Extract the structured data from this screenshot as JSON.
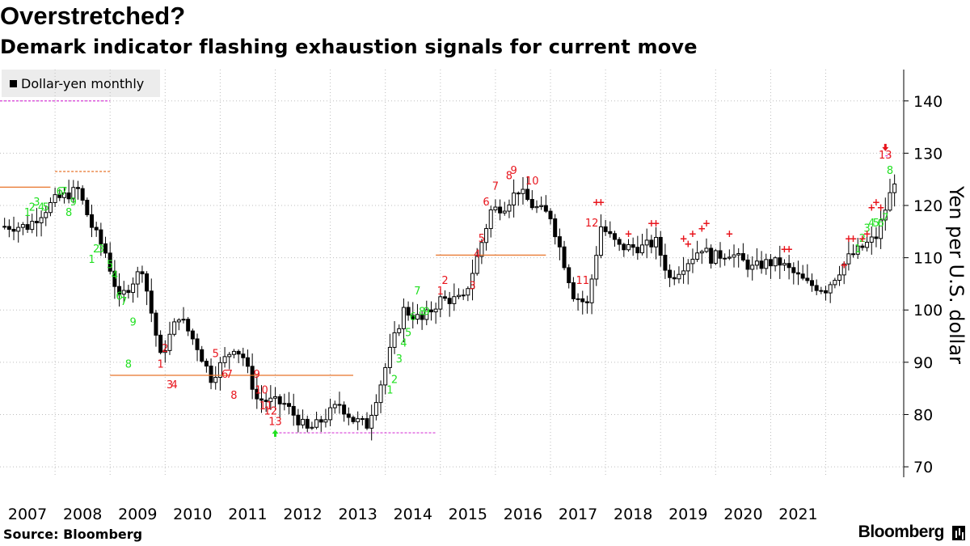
{
  "header": {
    "title": "Overstretched?",
    "subtitle": "Demark indicator flashing exhaustion signals for current move"
  },
  "legend": {
    "label": "Dollar-yen monthly"
  },
  "footer": {
    "source": "Source: Bloomberg",
    "brand": "Bloomberg"
  },
  "colors": {
    "candle": "#000000",
    "setup_count": "#22e022",
    "countdown": "#e8141c",
    "tdst_line": "#e8742a",
    "risk_line": "#d83cd8",
    "grid": "#bdbdbd"
  },
  "chart_data": {
    "type": "candlestick",
    "title": "Overstretched?",
    "subtitle": "Demark indicator flashing exhaustion signals for current move",
    "ylabel": "Yen per U.S. dollar",
    "ylim": [
      68,
      146
    ],
    "yticks": [
      70,
      80,
      90,
      100,
      110,
      120,
      130,
      140
    ],
    "xlim": [
      "2006-01",
      "2022-06"
    ],
    "xticks": [
      "2007",
      "2008",
      "2009",
      "2010",
      "2011",
      "2012",
      "2013",
      "2014",
      "2015",
      "2016",
      "2017",
      "2018",
      "2019",
      "2020",
      "2021"
    ],
    "grid": true,
    "legend_position": "top-left",
    "series": [
      {
        "name": "Dollar-yen monthly",
        "x": [
          "2006-01",
          "2006-07",
          "2007-01",
          "2007-06",
          "2007-09",
          "2007-12",
          "2008-03",
          "2008-08",
          "2008-12",
          "2009-04",
          "2009-08",
          "2009-11",
          "2010-04",
          "2010-06",
          "2010-09",
          "2011-03",
          "2011-08",
          "2011-10",
          "2012-03",
          "2012-06",
          "2012-09",
          "2012-12",
          "2013-02",
          "2013-05",
          "2013-09",
          "2014-01",
          "2014-06",
          "2014-09",
          "2014-12",
          "2015-03",
          "2015-06",
          "2015-09",
          "2016-01",
          "2016-06",
          "2016-09",
          "2016-12",
          "2017-04",
          "2017-09",
          "2017-12",
          "2018-03",
          "2018-10",
          "2018-12",
          "2019-04",
          "2019-09",
          "2019-12",
          "2020-03",
          "2020-06",
          "2020-09",
          "2021-01",
          "2021-06",
          "2021-12",
          "2022-03",
          "2022-04"
        ],
        "close": [
          116,
          116,
          121,
          123,
          116,
          111,
          102,
          108,
          91,
          99,
          93,
          87,
          93,
          91,
          83,
          82,
          77,
          78,
          82,
          79,
          78,
          86,
          92,
          100,
          98,
          102,
          102,
          110,
          119,
          120,
          123,
          120,
          118,
          103,
          101,
          116,
          112,
          112,
          113,
          106,
          112,
          110,
          111,
          108,
          109,
          109,
          107,
          105,
          104,
          110,
          114,
          122,
          125
        ]
      }
    ],
    "annotations": {
      "labels": [
        {
          "x": "2006-07",
          "y": 118,
          "text": "1",
          "color": "green"
        },
        {
          "x": "2006-08",
          "y": 119,
          "text": "2",
          "color": "green"
        },
        {
          "x": "2006-09",
          "y": 120,
          "text": "3",
          "color": "green"
        },
        {
          "x": "2006-10",
          "y": 119,
          "text": "4",
          "color": "green"
        },
        {
          "x": "2006-11",
          "y": 119,
          "text": "5",
          "color": "green"
        },
        {
          "x": "2007-02",
          "y": 122,
          "text": "6",
          "color": "green"
        },
        {
          "x": "2007-03",
          "y": 122,
          "text": "7",
          "color": "green"
        },
        {
          "x": "2007-04",
          "y": 118,
          "text": "8",
          "color": "green"
        },
        {
          "x": "2007-05",
          "y": 120,
          "text": "9",
          "color": "green"
        },
        {
          "x": "2007-09",
          "y": 109,
          "text": "1",
          "color": "green"
        },
        {
          "x": "2007-10",
          "y": 111,
          "text": "2",
          "color": "green"
        },
        {
          "x": "2007-11",
          "y": 111,
          "text": "3",
          "color": "green"
        },
        {
          "x": "2008-02",
          "y": 106,
          "text": "4",
          "color": "green"
        },
        {
          "x": "2008-01",
          "y": 108,
          "text": "5",
          "color": "green"
        },
        {
          "x": "2008-03",
          "y": 102,
          "text": "6",
          "color": "green"
        },
        {
          "x": "2008-04",
          "y": 101,
          "text": "7",
          "color": "green"
        },
        {
          "x": "2008-05",
          "y": 89,
          "text": "8",
          "color": "green"
        },
        {
          "x": "2008-06",
          "y": 97,
          "text": "9",
          "color": "green"
        },
        {
          "x": "2008-12",
          "y": 89,
          "text": "1",
          "color": "red"
        },
        {
          "x": "2009-01",
          "y": 92,
          "text": "2",
          "color": "red"
        },
        {
          "x": "2009-02",
          "y": 85,
          "text": "3",
          "color": "red"
        },
        {
          "x": "2009-03",
          "y": 85,
          "text": "4",
          "color": "red"
        },
        {
          "x": "2009-12",
          "y": 91,
          "text": "5",
          "color": "red"
        },
        {
          "x": "2010-02",
          "y": 87,
          "text": "6",
          "color": "red"
        },
        {
          "x": "2010-03",
          "y": 87,
          "text": "7",
          "color": "red"
        },
        {
          "x": "2010-04",
          "y": 83,
          "text": "8",
          "color": "red"
        },
        {
          "x": "2010-09",
          "y": 87,
          "text": "9",
          "color": "red"
        },
        {
          "x": "2010-10",
          "y": 84,
          "text": "10",
          "color": "red"
        },
        {
          "x": "2010-11",
          "y": 81,
          "text": "11",
          "color": "red"
        },
        {
          "x": "2010-12",
          "y": 80,
          "text": "12",
          "color": "red"
        },
        {
          "x": "2011-01",
          "y": 78,
          "text": "13",
          "color": "red"
        },
        {
          "x": "2013-02",
          "y": 84,
          "text": "1",
          "color": "green"
        },
        {
          "x": "2013-03",
          "y": 86,
          "text": "2",
          "color": "green"
        },
        {
          "x": "2013-04",
          "y": 90,
          "text": "3",
          "color": "green"
        },
        {
          "x": "2013-05",
          "y": 93,
          "text": "4",
          "color": "green"
        },
        {
          "x": "2013-06",
          "y": 95,
          "text": "5",
          "color": "green"
        },
        {
          "x": "2013-07",
          "y": 98,
          "text": "6",
          "color": "green"
        },
        {
          "x": "2013-08",
          "y": 103,
          "text": "7",
          "color": "green"
        },
        {
          "x": "2013-09",
          "y": 99,
          "text": "8",
          "color": "green"
        },
        {
          "x": "2013-10",
          "y": 99,
          "text": "9",
          "color": "green"
        },
        {
          "x": "2014-01",
          "y": 103,
          "text": "1",
          "color": "red"
        },
        {
          "x": "2014-02",
          "y": 105,
          "text": "2",
          "color": "red"
        },
        {
          "x": "2014-08",
          "y": 104,
          "text": "3",
          "color": "red"
        },
        {
          "x": "2014-09",
          "y": 110,
          "text": "4",
          "color": "red"
        },
        {
          "x": "2014-10",
          "y": 113,
          "text": "5",
          "color": "red"
        },
        {
          "x": "2014-11",
          "y": 120,
          "text": "6",
          "color": "red"
        },
        {
          "x": "2015-01",
          "y": 123,
          "text": "7",
          "color": "red"
        },
        {
          "x": "2015-04",
          "y": 125,
          "text": "8",
          "color": "red"
        },
        {
          "x": "2015-05",
          "y": 126,
          "text": "9",
          "color": "red"
        },
        {
          "x": "2015-09",
          "y": 124,
          "text": "10",
          "color": "red"
        },
        {
          "x": "2016-08",
          "y": 105,
          "text": "11",
          "color": "red"
        },
        {
          "x": "2016-10",
          "y": 116,
          "text": "12",
          "color": "red"
        },
        {
          "x": "2022-02",
          "y": 129,
          "text": "13",
          "color": "red"
        },
        {
          "x": "2021-08",
          "y": 111,
          "text": "1",
          "color": "green"
        },
        {
          "x": "2021-09",
          "y": 113,
          "text": "2",
          "color": "green"
        },
        {
          "x": "2021-10",
          "y": 115,
          "text": "3",
          "color": "green"
        },
        {
          "x": "2021-11",
          "y": 116,
          "text": "4",
          "color": "green"
        },
        {
          "x": "2021-12",
          "y": 116,
          "text": "5",
          "color": "green"
        },
        {
          "x": "2022-01",
          "y": 116,
          "text": "6",
          "color": "green"
        },
        {
          "x": "2022-02",
          "y": 117,
          "text": "7",
          "color": "green"
        },
        {
          "x": "2022-03",
          "y": 126,
          "text": "8",
          "color": "green"
        }
      ],
      "markers": [
        {
          "x": "2016-11",
          "y": 120,
          "text": "+"
        },
        {
          "x": "2016-12",
          "y": 120,
          "text": "+"
        },
        {
          "x": "2017-06",
          "y": 114,
          "text": "+"
        },
        {
          "x": "2017-11",
          "y": 116,
          "text": "+"
        },
        {
          "x": "2017-12",
          "y": 116,
          "text": "+"
        },
        {
          "x": "2018-06",
          "y": 113,
          "text": "+"
        },
        {
          "x": "2018-07",
          "y": 112,
          "text": "+"
        },
        {
          "x": "2018-08",
          "y": 114,
          "text": "+"
        },
        {
          "x": "2018-10",
          "y": 115,
          "text": "+"
        },
        {
          "x": "2018-11",
          "y": 116,
          "text": "+"
        },
        {
          "x": "2019-04",
          "y": 114,
          "text": "+"
        },
        {
          "x": "2020-04",
          "y": 111,
          "text": "+"
        },
        {
          "x": "2020-05",
          "y": 111,
          "text": "+"
        },
        {
          "x": "2021-05",
          "y": 108,
          "text": "+"
        },
        {
          "x": "2021-06",
          "y": 113,
          "text": "+"
        },
        {
          "x": "2021-07",
          "y": 113,
          "text": "+"
        },
        {
          "x": "2021-09",
          "y": 113,
          "text": "+"
        },
        {
          "x": "2021-10",
          "y": 114,
          "text": "+"
        },
        {
          "x": "2021-11",
          "y": 119,
          "text": "+"
        },
        {
          "x": "2021-12",
          "y": 120,
          "text": "+"
        },
        {
          "x": "2022-01",
          "y": 119,
          "text": "+"
        }
      ],
      "arrows": [
        {
          "x": "2011-01",
          "y": 76.5,
          "direction": "up",
          "color": "green"
        },
        {
          "x": "2022-02",
          "y": 131,
          "direction": "down",
          "color": "red"
        }
      ],
      "levels": [
        {
          "from": "2006-01",
          "to": "2008-01",
          "y": 140,
          "style": "risk"
        },
        {
          "from": "2006-01",
          "to": "2006-12",
          "y": 123.5,
          "style": "tdst"
        },
        {
          "from": "2007-01",
          "to": "2008-01",
          "y": 126.5,
          "style": "tdst"
        },
        {
          "from": "2008-01",
          "to": "2012-06",
          "y": 87.5,
          "style": "tdst"
        },
        {
          "from": "2011-01",
          "to": "2013-12",
          "y": 76.5,
          "style": "risk"
        },
        {
          "from": "2013-12",
          "to": "2015-12",
          "y": 110.5,
          "style": "tdst"
        },
        {
          "from": "2022-02",
          "to": "2022-03",
          "y": 129.5,
          "style": "risk"
        }
      ]
    }
  }
}
